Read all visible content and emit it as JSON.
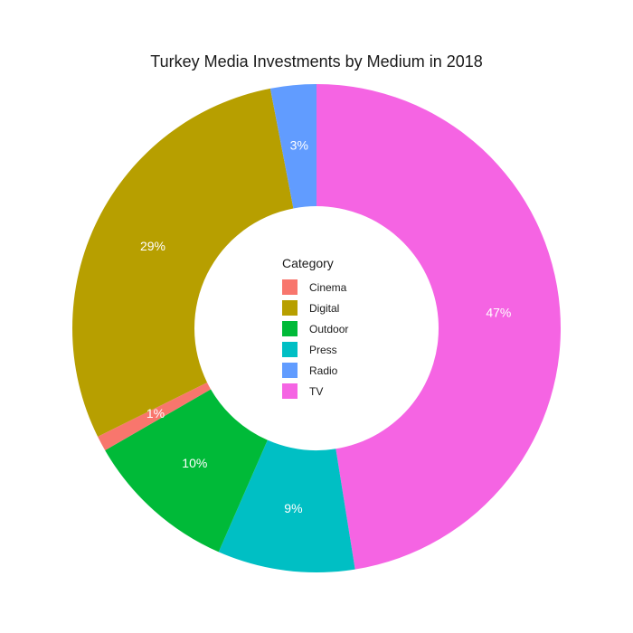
{
  "chart_data": {
    "type": "pie",
    "title": "Turkey Media Investments by Medium in 2018",
    "legend_title": "Category",
    "legend_position": "center",
    "categories": [
      "Cinema",
      "Digital",
      "Outdoor",
      "Press",
      "Radio",
      "TV"
    ],
    "values": [
      1,
      29,
      10,
      9,
      3,
      47
    ],
    "labels": [
      "1%",
      "29%",
      "10%",
      "9%",
      "3%",
      "47%"
    ],
    "colors": [
      "#F8766D",
      "#B79F00",
      "#00BA38",
      "#00BFC4",
      "#619CFF",
      "#F564E3"
    ],
    "donut": true
  }
}
